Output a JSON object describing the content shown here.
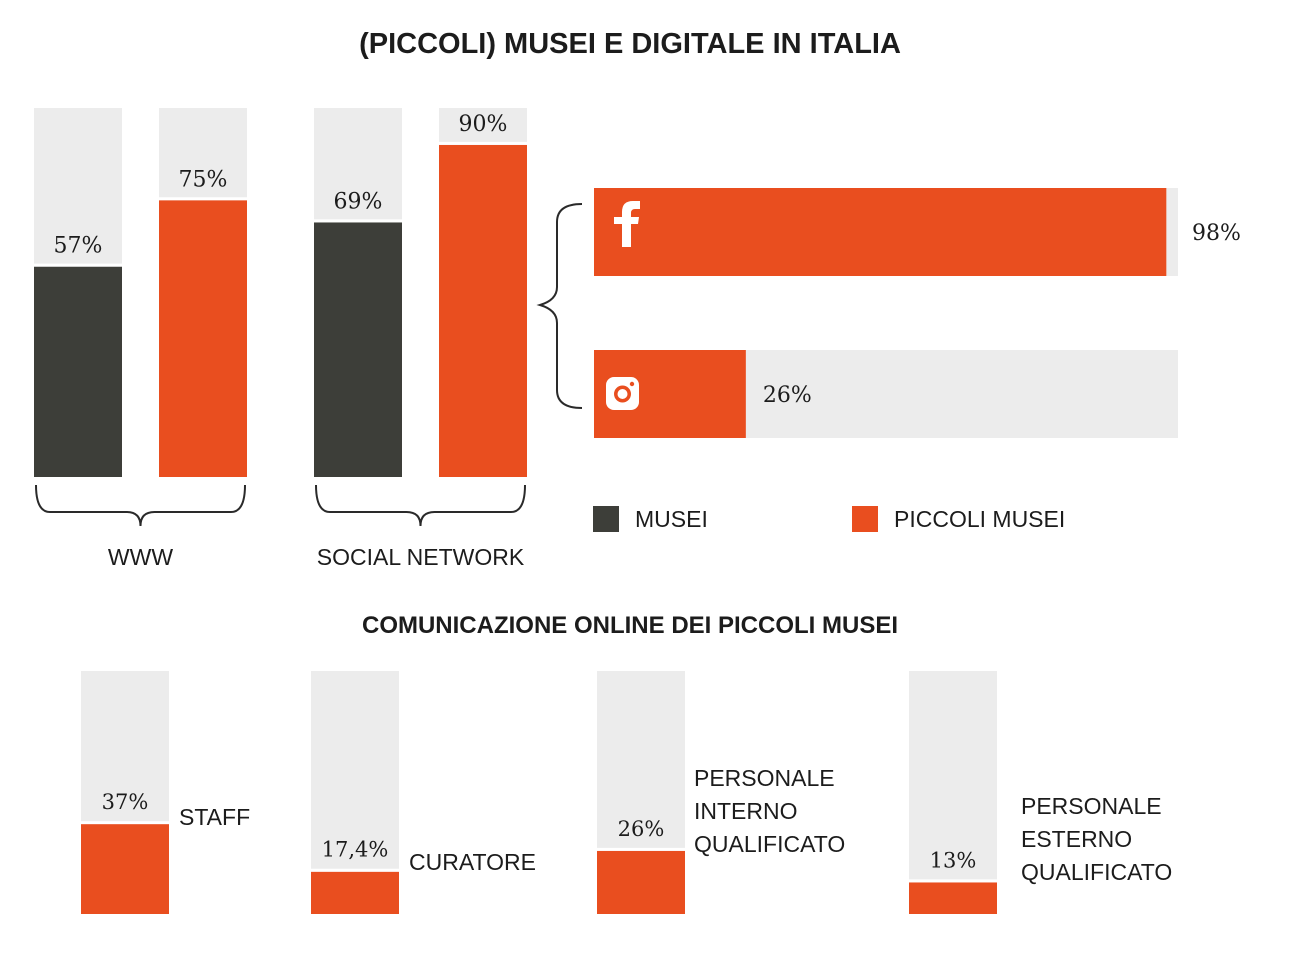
{
  "title": "(PICCOLI) MUSEI E DIGITALE IN ITALIA",
  "colors": {
    "musei": "#3d3e39",
    "piccoli": "#e94e1f",
    "track": "#ececec"
  },
  "legend": [
    {
      "label": "MUSEI",
      "color": "#3d3e39"
    },
    {
      "label": "PICCOLI MUSEI",
      "color": "#e94e1f"
    }
  ],
  "chart_data": [
    {
      "type": "bar",
      "categories": [
        "WWW",
        "SOCIAL NETWORK"
      ],
      "series": [
        {
          "name": "MUSEI",
          "values": [
            57,
            69
          ],
          "labels": [
            "57%",
            "69%"
          ]
        },
        {
          "name": "PICCOLI MUSEI",
          "values": [
            75,
            90
          ],
          "labels": [
            "75%",
            "90%"
          ]
        }
      ],
      "ylim": [
        0,
        100
      ],
      "legend": "bottom-right"
    },
    {
      "type": "bar",
      "orientation": "horizontal",
      "categories": [
        "facebook-icon",
        "instagram-icon"
      ],
      "values": [
        98,
        26
      ],
      "labels": [
        "98%",
        "26%"
      ],
      "xlim": [
        0,
        100
      ]
    },
    {
      "type": "bar",
      "title": "COMUNICAZIONE ONLINE DEI PICCOLI MUSEI",
      "categories": [
        [
          "STAFF"
        ],
        [
          "CURATORE"
        ],
        [
          "PERSONALE",
          "INTERNO",
          "QUALIFICATO"
        ],
        [
          "PERSONALE",
          "ESTERNO",
          "QUALIFICATO"
        ]
      ],
      "values": [
        37,
        17.4,
        26,
        13
      ],
      "labels": [
        "37%",
        "17,4%",
        "26%",
        "13%"
      ],
      "ylim": [
        0,
        100
      ]
    }
  ]
}
